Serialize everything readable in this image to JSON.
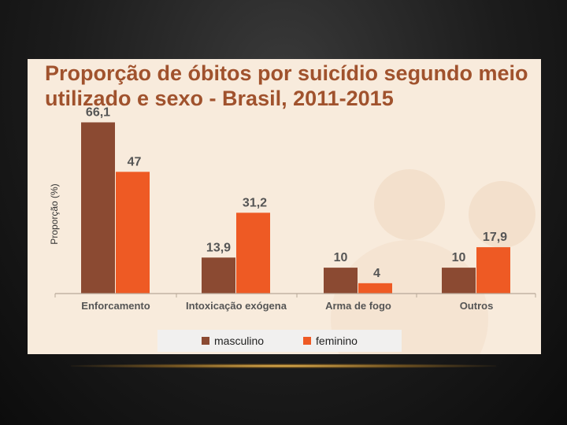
{
  "chart_data": {
    "type": "bar",
    "title": "Proporção de óbitos por suicídio segundo meio utilizado e sexo - Brasil, 2011-2015",
    "ylabel": "Proporção (%)",
    "xlabel": "",
    "categories": [
      "Enforcamento",
      "Intoxicação exógena",
      "Arma de fogo",
      "Outros"
    ],
    "series": [
      {
        "name": "masculino",
        "values": [
          66.1,
          13.9,
          10,
          10
        ],
        "labels": [
          "66,1",
          "13,9",
          "10",
          "10"
        ],
        "color": "#8b4a32"
      },
      {
        "name": "feminino",
        "values": [
          47,
          31.2,
          4,
          17.9
        ],
        "labels": [
          "47",
          "31,2",
          "4",
          "17,9"
        ],
        "color": "#ee5a24"
      }
    ],
    "ylim": [
      0,
      70
    ],
    "grid": false,
    "legend": "bottom"
  },
  "colors": {
    "title": "#a0522d",
    "panel_background": "#f8ebdc",
    "axis": "#b0a090",
    "label_text": "#555555"
  }
}
